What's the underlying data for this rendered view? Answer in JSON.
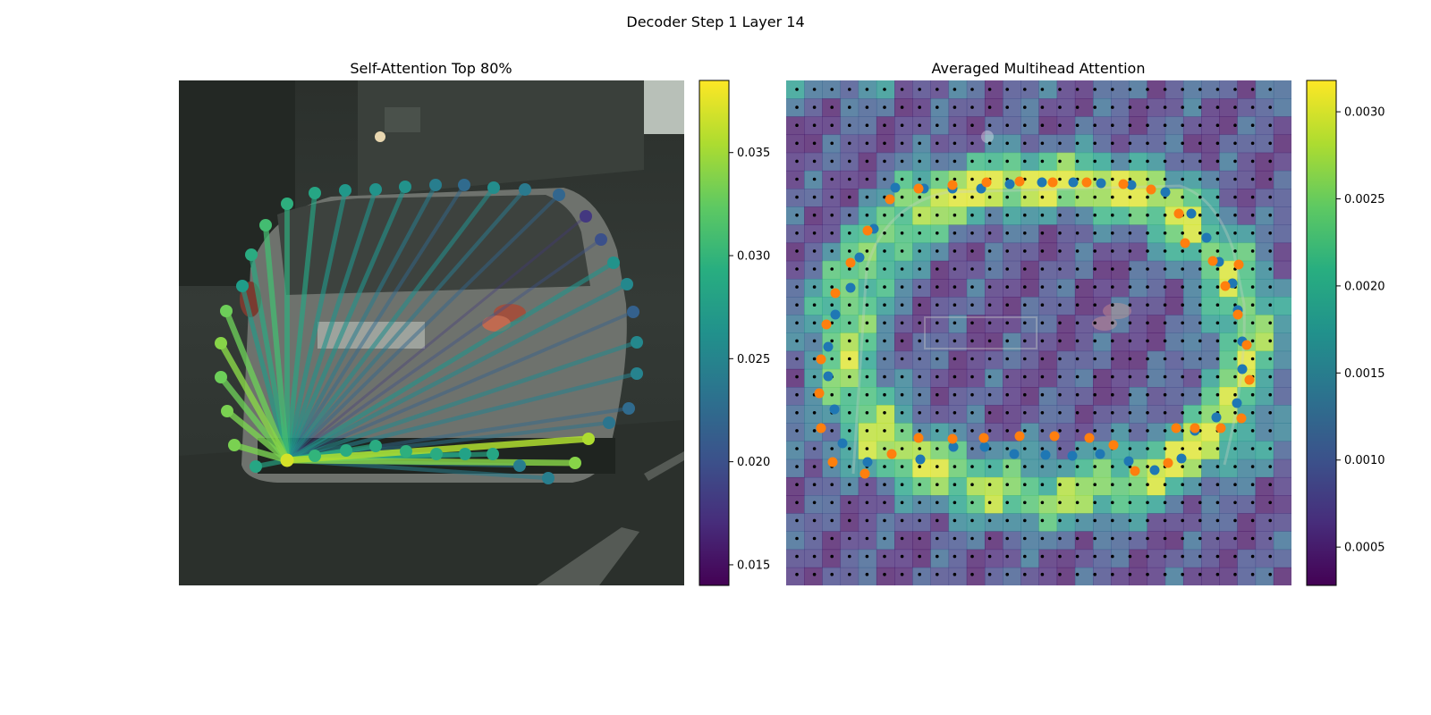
{
  "figure": {
    "title": "Decoder Step 1 Layer 14"
  },
  "chart_data": [
    {
      "type": "scatter",
      "title": "Self-Attention Top 80%",
      "description_of_marks": "contour points connected by lines to the query point, colored by attention weight",
      "colormap": "viridis",
      "colorbar": {
        "range": [
          0.014,
          0.0385
        ],
        "ticks": [
          "0.015",
          "0.020",
          "0.025",
          "0.030",
          "0.035"
        ],
        "tick_values": [
          0.015,
          0.02,
          0.025,
          0.03,
          0.035
        ]
      },
      "query_point": {
        "x": 121,
        "y": 425,
        "value": 0.037
      },
      "points": [
        {
          "x": 121,
          "y": 138,
          "value": 0.0295
        },
        {
          "x": 152,
          "y": 126,
          "value": 0.0285
        },
        {
          "x": 186,
          "y": 123,
          "value": 0.027
        },
        {
          "x": 220,
          "y": 122,
          "value": 0.0265
        },
        {
          "x": 253,
          "y": 119,
          "value": 0.0265
        },
        {
          "x": 287,
          "y": 117,
          "value": 0.0245
        },
        {
          "x": 319,
          "y": 117,
          "value": 0.0225
        },
        {
          "x": 352,
          "y": 120,
          "value": 0.026
        },
        {
          "x": 387,
          "y": 122,
          "value": 0.024
        },
        {
          "x": 425,
          "y": 128,
          "value": 0.022
        },
        {
          "x": 455,
          "y": 152,
          "value": 0.018
        },
        {
          "x": 472,
          "y": 178,
          "value": 0.02
        },
        {
          "x": 486,
          "y": 204,
          "value": 0.0265
        },
        {
          "x": 501,
          "y": 228,
          "value": 0.0255
        },
        {
          "x": 508,
          "y": 259,
          "value": 0.0215
        },
        {
          "x": 512,
          "y": 293,
          "value": 0.0255
        },
        {
          "x": 512,
          "y": 328,
          "value": 0.025
        },
        {
          "x": 503,
          "y": 367,
          "value": 0.0225
        },
        {
          "x": 481,
          "y": 383,
          "value": 0.0235
        },
        {
          "x": 458,
          "y": 401,
          "value": 0.0355
        },
        {
          "x": 443,
          "y": 428,
          "value": 0.034
        },
        {
          "x": 413,
          "y": 445,
          "value": 0.0245
        },
        {
          "x": 381,
          "y": 431,
          "value": 0.0245
        },
        {
          "x": 351,
          "y": 418,
          "value": 0.0285
        },
        {
          "x": 320,
          "y": 418,
          "value": 0.028
        },
        {
          "x": 288,
          "y": 418,
          "value": 0.029
        },
        {
          "x": 254,
          "y": 415,
          "value": 0.0295
        },
        {
          "x": 220,
          "y": 409,
          "value": 0.029
        },
        {
          "x": 187,
          "y": 414,
          "value": 0.029
        },
        {
          "x": 152,
          "y": 420,
          "value": 0.03
        },
        {
          "x": 86,
          "y": 432,
          "value": 0.0285
        },
        {
          "x": 62,
          "y": 408,
          "value": 0.0335
        },
        {
          "x": 54,
          "y": 370,
          "value": 0.0335
        },
        {
          "x": 47,
          "y": 332,
          "value": 0.033
        },
        {
          "x": 47,
          "y": 294,
          "value": 0.034
        },
        {
          "x": 53,
          "y": 258,
          "value": 0.033
        },
        {
          "x": 71,
          "y": 230,
          "value": 0.0275
        },
        {
          "x": 81,
          "y": 195,
          "value": 0.029
        },
        {
          "x": 97,
          "y": 162,
          "value": 0.031
        }
      ]
    },
    {
      "type": "heatmap",
      "title": "Averaged Multihead Attention",
      "colormap": "viridis",
      "overlay": "semi-transparent attention heatmap over road scene with reference grid points and sampled points",
      "colorbar": {
        "range": [
          0.00028,
          0.00318
        ],
        "ticks": [
          "0.0005",
          "0.0010",
          "0.0015",
          "0.0020",
          "0.0025",
          "0.0030"
        ],
        "tick_values": [
          0.0005,
          0.001,
          0.0015,
          0.002,
          0.0025,
          0.003
        ]
      },
      "series": [
        {
          "color": "#1f77b4",
          "points": [
            [
              122,
              120
            ],
            [
              154,
              121
            ],
            [
              186,
              121
            ],
            [
              218,
              121
            ],
            [
              250,
              116
            ],
            [
              286,
              114
            ],
            [
              321,
              114
            ],
            [
              352,
              115
            ],
            [
              386,
              117
            ],
            [
              424,
              125
            ],
            [
              453,
              149
            ],
            [
              470,
              176
            ],
            [
              484,
              203
            ],
            [
              499,
              227
            ],
            [
              505,
              257
            ],
            [
              510,
              292
            ],
            [
              510,
              323
            ],
            [
              504,
              361
            ],
            [
              481,
              377
            ],
            [
              457,
              392
            ],
            [
              442,
              423
            ],
            [
              412,
              436
            ],
            [
              383,
              426
            ],
            [
              351,
              418
            ],
            [
              320,
              420
            ],
            [
              290,
              419
            ],
            [
              255,
              418
            ],
            [
              222,
              410
            ],
            [
              187,
              410
            ],
            [
              150,
              424
            ],
            [
              91,
              427
            ],
            [
              63,
              406
            ],
            [
              54,
              368
            ],
            [
              47,
              331
            ],
            [
              47,
              298
            ],
            [
              55,
              262
            ],
            [
              72,
              232
            ],
            [
              82,
              198
            ],
            [
              98,
              166
            ]
          ]
        },
        {
          "color": "#ff7f0e",
          "points": [
            [
              116,
              133
            ],
            [
              148,
              121
            ],
            [
              186,
              117
            ],
            [
              224,
              114
            ],
            [
              261,
              113
            ],
            [
              298,
              114
            ],
            [
              336,
              114
            ],
            [
              377,
              116
            ],
            [
              408,
              122
            ],
            [
              439,
              149
            ],
            [
              446,
              182
            ],
            [
              477,
              202
            ],
            [
              491,
              230
            ],
            [
              506,
              206
            ],
            [
              505,
              262
            ],
            [
              515,
              296
            ],
            [
              518,
              335
            ],
            [
              509,
              378
            ],
            [
              486,
              389
            ],
            [
              457,
              389
            ],
            [
              436,
              389
            ],
            [
              427,
              428
            ],
            [
              390,
              437
            ],
            [
              366,
              408
            ],
            [
              339,
              400
            ],
            [
              300,
              398
            ],
            [
              261,
              398
            ],
            [
              221,
              400
            ],
            [
              186,
              401
            ],
            [
              148,
              400
            ],
            [
              118,
              418
            ],
            [
              88,
              440
            ],
            [
              52,
              427
            ],
            [
              39,
              389
            ],
            [
              37,
              350
            ],
            [
              39,
              312
            ],
            [
              45,
              273
            ],
            [
              55,
              238
            ],
            [
              72,
              204
            ],
            [
              91,
              168
            ]
          ]
        }
      ]
    }
  ]
}
